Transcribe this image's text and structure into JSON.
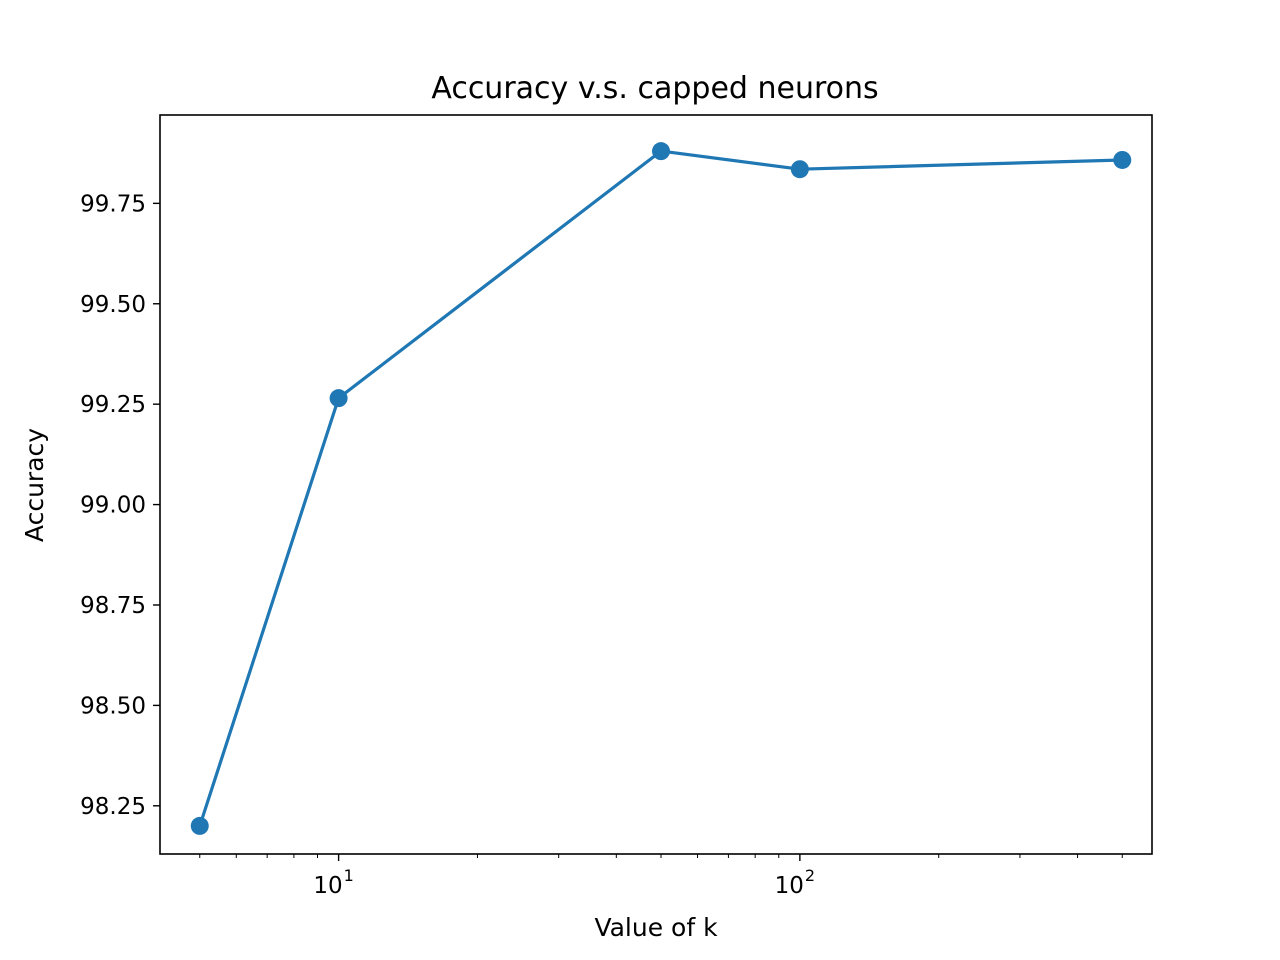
{
  "chart_data": {
    "type": "line",
    "title": "Accuracy v.s. capped neurons",
    "xlabel": "Value of k",
    "ylabel": "Accuracy",
    "xscale": "log",
    "xlim": [
      4.1,
      580
    ],
    "ylim": [
      98.13,
      99.97
    ],
    "x_ticks": [
      10,
      100
    ],
    "x_tick_labels": [
      {
        "base": "10",
        "exp": "1"
      },
      {
        "base": "10",
        "exp": "2"
      }
    ],
    "y_ticks": [
      98.25,
      98.5,
      98.75,
      99.0,
      99.25,
      99.5,
      99.75
    ],
    "y_tick_labels": [
      "98.25",
      "98.50",
      "98.75",
      "99.00",
      "99.25",
      "99.50",
      "99.75"
    ],
    "grid": false,
    "series": [
      {
        "x": [
          5,
          10,
          50,
          100,
          500
        ],
        "values": [
          98.2,
          99.265,
          99.88,
          99.835,
          99.858
        ],
        "color": "#1f77b4",
        "marker": "circle"
      }
    ]
  }
}
